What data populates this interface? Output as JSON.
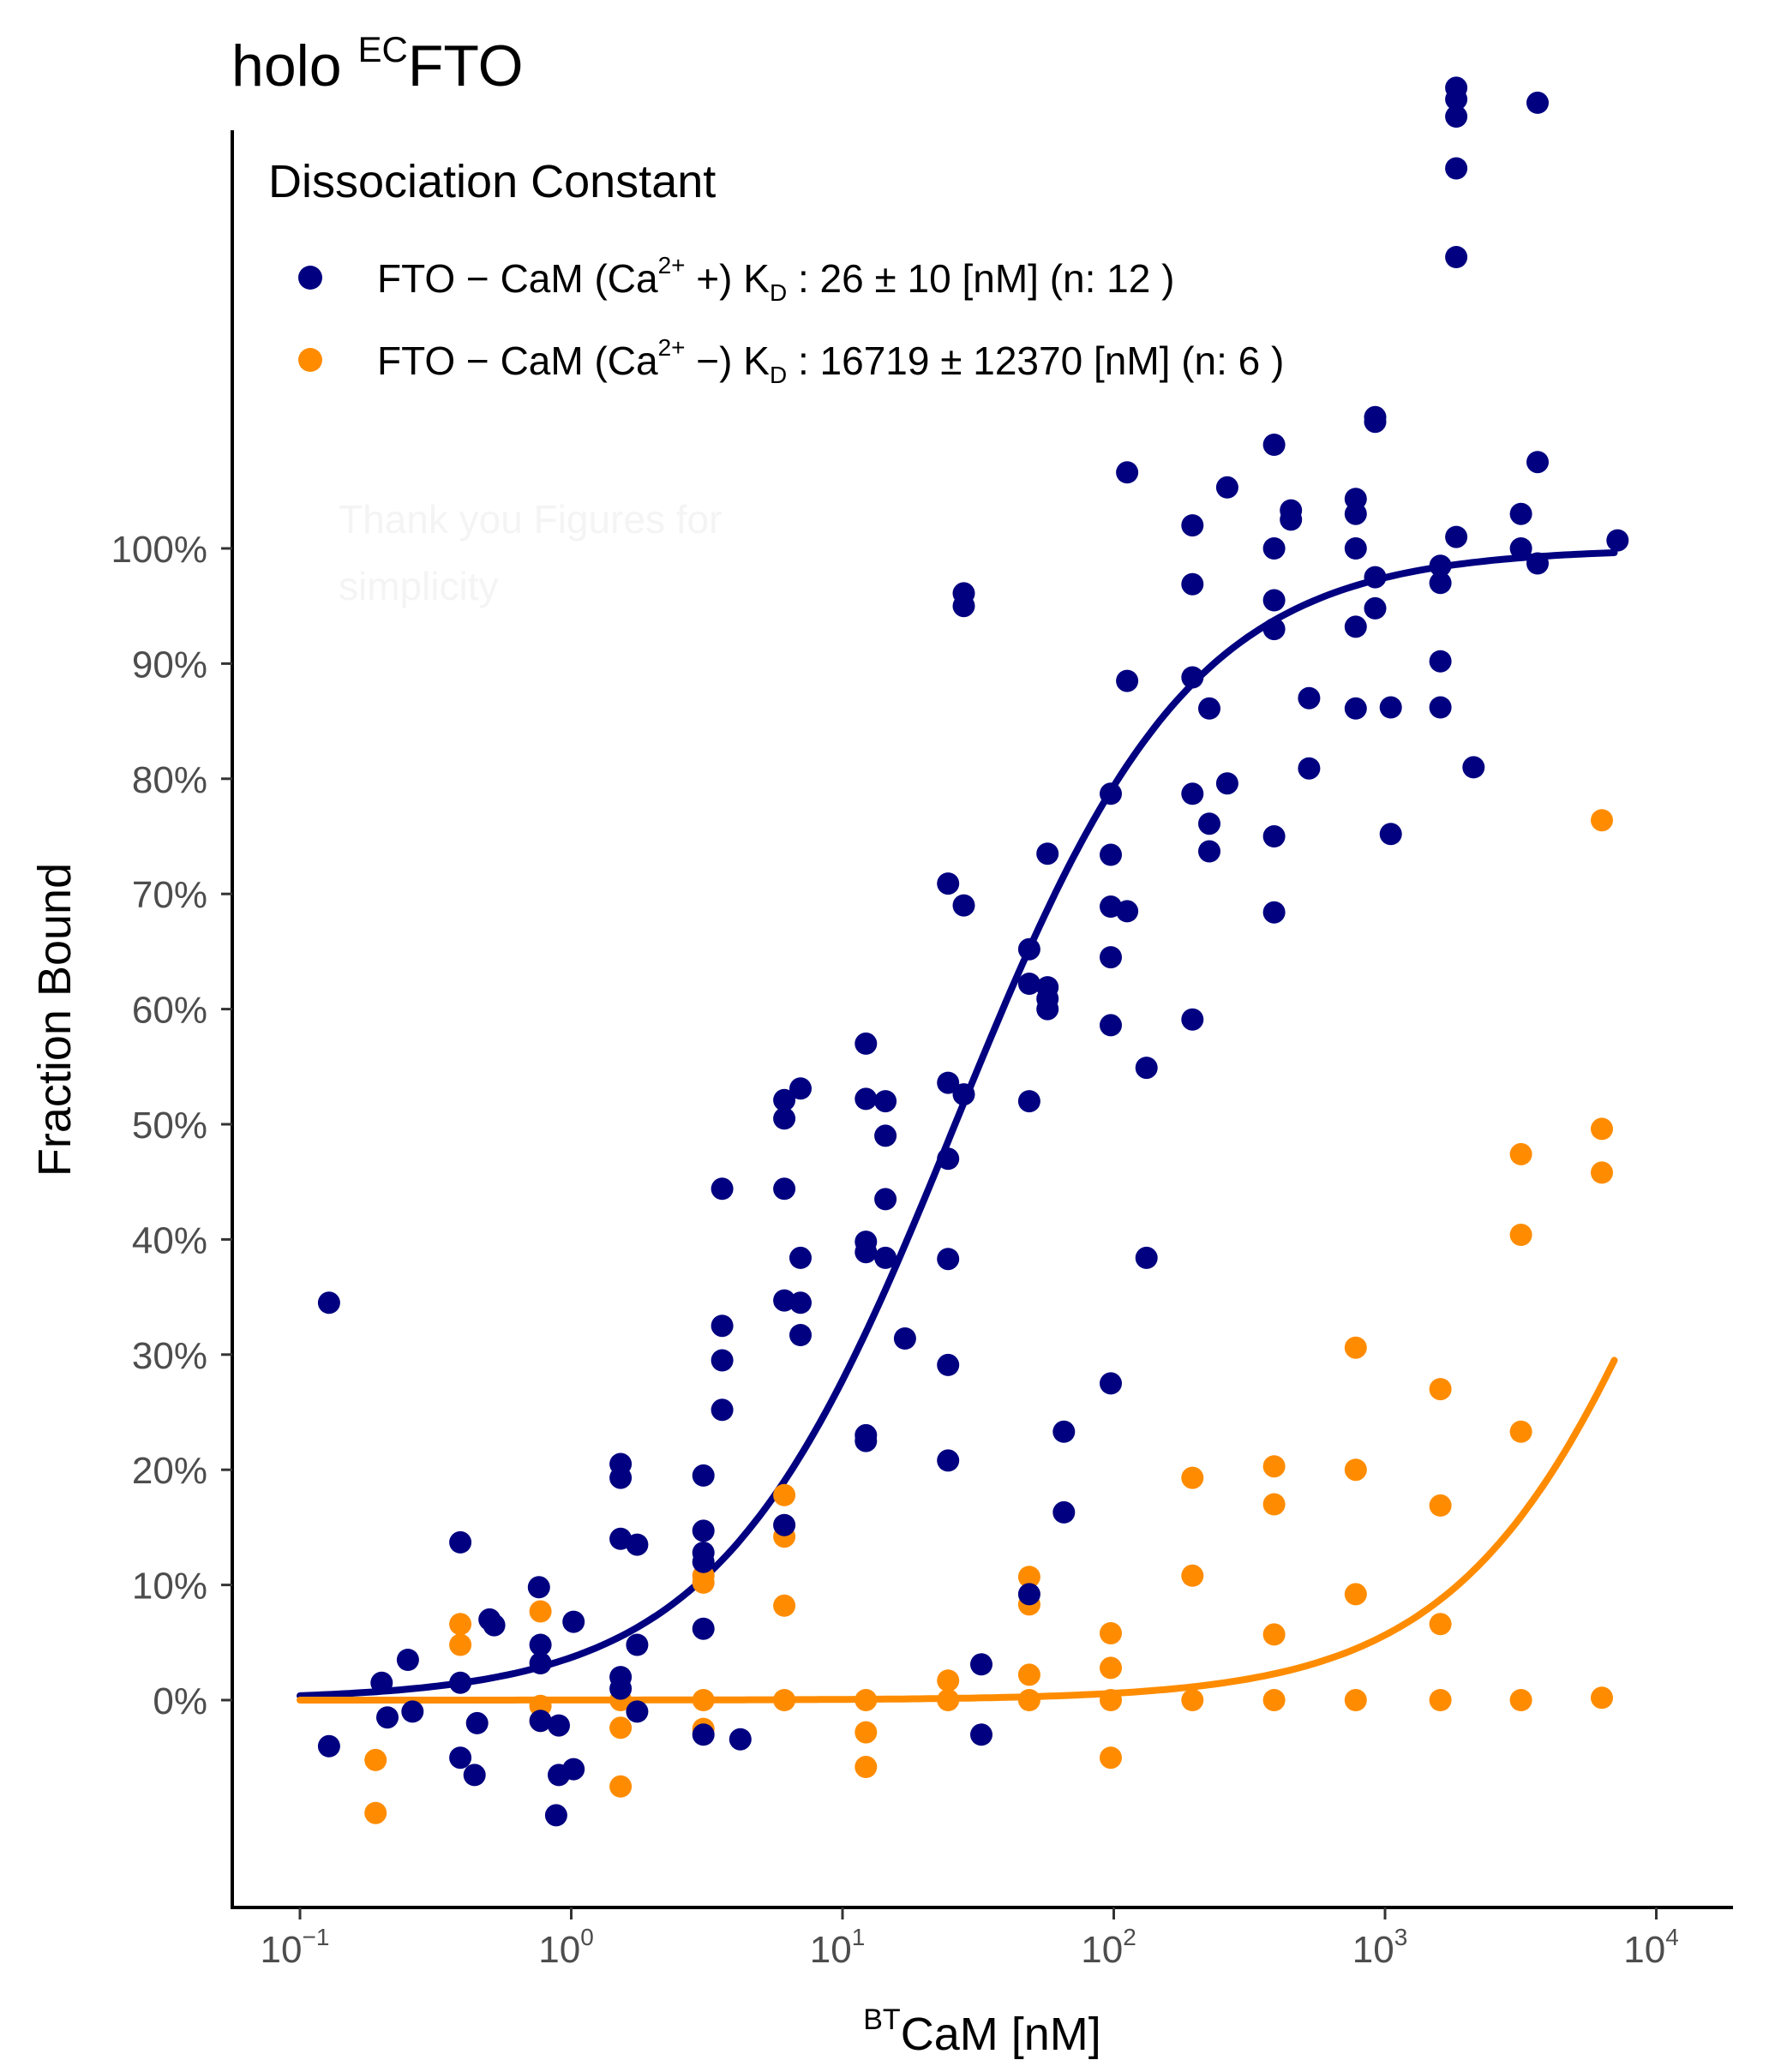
{
  "chart_data": {
    "type": "scatter",
    "title": {
      "prefix": "holo ",
      "superscript": "EC",
      "main": "FTO"
    },
    "xlabel": {
      "superscript": "BT",
      "main": "CaM [nM]"
    },
    "ylabel": "Fraction Bound",
    "x_scale": "log10",
    "xlim": [
      0.06,
      12000
    ],
    "ylim": [
      -0.16,
      1.38
    ],
    "x_ticks": [
      {
        "value": 0.1,
        "base": "10",
        "exp": "−1"
      },
      {
        "value": 1,
        "base": "10",
        "exp": "0"
      },
      {
        "value": 10,
        "base": "10",
        "exp": "1"
      },
      {
        "value": 100,
        "base": "10",
        "exp": "2"
      },
      {
        "value": 1000,
        "base": "10",
        "exp": "3"
      },
      {
        "value": 10000,
        "base": "10",
        "exp": "4"
      }
    ],
    "y_ticks": [
      {
        "value": 0.0,
        "label": "0%"
      },
      {
        "value": 0.1,
        "label": "10%"
      },
      {
        "value": 0.2,
        "label": "20%"
      },
      {
        "value": 0.3,
        "label": "30%"
      },
      {
        "value": 0.4,
        "label": "40%"
      },
      {
        "value": 0.5,
        "label": "50%"
      },
      {
        "value": 0.6,
        "label": "60%"
      },
      {
        "value": 0.7,
        "label": "70%"
      },
      {
        "value": 0.8,
        "label": "80%"
      },
      {
        "value": 0.9,
        "label": "90%"
      },
      {
        "value": 1.0,
        "label": "100%"
      }
    ],
    "legend": {
      "title": "Dissociation Constant",
      "position": "top-left"
    },
    "ghost_text": [
      "Thank you Figures for",
      "simplicity"
    ],
    "series": [
      {
        "name": "FTO − CaM (Ca2+ +)",
        "color": "#000080",
        "legend_parts": {
          "a": "FTO − CaM (Ca",
          "sup": "2+",
          "b": " +)  K",
          "sub": "D",
          "c": " :  26 ± 10  [nM] (n:  12 )"
        },
        "kd": 26,
        "kd_err": 10,
        "n": 12,
        "fit": {
          "model": "hill",
          "kd": 26,
          "top": 1.0,
          "bottom": 0.0,
          "hill": 1,
          "x_range": [
            0.1,
            7000
          ]
        },
        "points": [
          [
            0.128,
            0.345
          ],
          [
            0.128,
            -0.04
          ],
          [
            0.2,
            0.015
          ],
          [
            0.21,
            -0.015
          ],
          [
            0.25,
            0.035
          ],
          [
            0.26,
            -0.01
          ],
          [
            0.39,
            0.137
          ],
          [
            0.39,
            0.015
          ],
          [
            0.39,
            -0.05
          ],
          [
            0.44,
            -0.065
          ],
          [
            0.45,
            -0.02
          ],
          [
            0.5,
            0.07
          ],
          [
            0.52,
            0.065
          ],
          [
            0.76,
            0.098
          ],
          [
            0.77,
            0.048
          ],
          [
            0.77,
            0.032
          ],
          [
            0.77,
            -0.018
          ],
          [
            0.88,
            -0.1
          ],
          [
            0.9,
            -0.065
          ],
          [
            0.9,
            -0.022
          ],
          [
            1.02,
            0.068
          ],
          [
            1.02,
            -0.06
          ],
          [
            1.52,
            0.205
          ],
          [
            1.52,
            0.193
          ],
          [
            1.52,
            0.14
          ],
          [
            1.52,
            0.02
          ],
          [
            1.52,
            0.01
          ],
          [
            1.75,
            0.135
          ],
          [
            1.75,
            0.048
          ],
          [
            1.75,
            -0.01
          ],
          [
            3.07,
            0.195
          ],
          [
            3.07,
            0.147
          ],
          [
            3.07,
            0.128
          ],
          [
            3.07,
            0.12
          ],
          [
            3.07,
            0.062
          ],
          [
            3.07,
            -0.03
          ],
          [
            3.6,
            0.444
          ],
          [
            3.6,
            0.325
          ],
          [
            3.6,
            0.295
          ],
          [
            3.6,
            0.252
          ],
          [
            4.2,
            -0.034
          ],
          [
            6.1,
            0.521
          ],
          [
            6.1,
            0.505
          ],
          [
            6.1,
            0.444
          ],
          [
            6.1,
            0.347
          ],
          [
            6.1,
            0.152
          ],
          [
            7.0,
            0.531
          ],
          [
            7.0,
            0.384
          ],
          [
            7.0,
            0.345
          ],
          [
            7.0,
            0.317
          ],
          [
            12.2,
            0.57
          ],
          [
            12.2,
            0.522
          ],
          [
            12.2,
            0.398
          ],
          [
            12.2,
            0.389
          ],
          [
            12.2,
            0.23
          ],
          [
            12.2,
            0.225
          ],
          [
            14.4,
            0.52
          ],
          [
            14.4,
            0.49
          ],
          [
            14.4,
            0.435
          ],
          [
            14.4,
            0.384
          ],
          [
            17.0,
            0.314
          ],
          [
            24.5,
            0.709
          ],
          [
            24.5,
            0.536
          ],
          [
            24.5,
            0.47
          ],
          [
            24.5,
            0.383
          ],
          [
            24.5,
            0.291
          ],
          [
            24.5,
            0.208
          ],
          [
            28.0,
            0.961
          ],
          [
            28.0,
            0.95
          ],
          [
            28.0,
            0.69
          ],
          [
            28.0,
            0.526
          ],
          [
            32.5,
            0.031
          ],
          [
            32.5,
            -0.03
          ],
          [
            48.8,
            0.652
          ],
          [
            48.8,
            0.622
          ],
          [
            48.8,
            0.52
          ],
          [
            48.8,
            0.092
          ],
          [
            57.0,
            0.735
          ],
          [
            57.0,
            0.619
          ],
          [
            57.0,
            0.609
          ],
          [
            57.0,
            0.6
          ],
          [
            65.5,
            0.233
          ],
          [
            65.5,
            0.163
          ],
          [
            97.5,
            0.787
          ],
          [
            97.5,
            0.734
          ],
          [
            97.5,
            0.689
          ],
          [
            97.5,
            0.645
          ],
          [
            97.5,
            0.586
          ],
          [
            97.5,
            0.275
          ],
          [
            112,
            1.066
          ],
          [
            112,
            0.885
          ],
          [
            112,
            0.685
          ],
          [
            132,
            0.549
          ],
          [
            132,
            0.384
          ],
          [
            195,
            1.02
          ],
          [
            195,
            0.969
          ],
          [
            195,
            0.888
          ],
          [
            195,
            0.787
          ],
          [
            195,
            0.591
          ],
          [
            225,
            0.861
          ],
          [
            225,
            0.761
          ],
          [
            225,
            0.737
          ],
          [
            262,
            1.053
          ],
          [
            262,
            0.796
          ],
          [
            390,
            1.09
          ],
          [
            390,
            1.0
          ],
          [
            390,
            0.955
          ],
          [
            390,
            0.93
          ],
          [
            390,
            0.75
          ],
          [
            390,
            0.684
          ],
          [
            450,
            1.033
          ],
          [
            450,
            1.025
          ],
          [
            525,
            0.87
          ],
          [
            525,
            0.809
          ],
          [
            780,
            1.043
          ],
          [
            780,
            1.03
          ],
          [
            780,
            1.0
          ],
          [
            780,
            0.932
          ],
          [
            780,
            0.861
          ],
          [
            920,
            1.114
          ],
          [
            920,
            1.11
          ],
          [
            920,
            0.975
          ],
          [
            920,
            0.948
          ],
          [
            1050,
            0.862
          ],
          [
            1050,
            0.752
          ],
          [
            1600,
            0.985
          ],
          [
            1600,
            0.97
          ],
          [
            1600,
            0.902
          ],
          [
            1600,
            0.862
          ],
          [
            1830,
            1.4
          ],
          [
            1830,
            1.375
          ],
          [
            1830,
            1.39
          ],
          [
            1830,
            1.33
          ],
          [
            1830,
            1.253
          ],
          [
            1830,
            1.01
          ],
          [
            2120,
            0.81
          ],
          [
            3170,
            1.03
          ],
          [
            3170,
            1.0
          ],
          [
            3650,
            1.387
          ],
          [
            3650,
            1.075
          ],
          [
            3650,
            0.987
          ],
          [
            7200,
            1.007
          ]
        ]
      },
      {
        "name": "FTO − CaM (Ca2+ −)",
        "color": "#FF8C00",
        "legend_parts": {
          "a": "FTO − CaM (Ca",
          "sup": "2+",
          "b": " −)  K",
          "sub": "D",
          "c": " :  16719 ± 12370  [nM] (n:  6 )"
        },
        "kd": 16719,
        "kd_err": 12370,
        "n": 6,
        "fit": {
          "model": "hill",
          "kd": 16719,
          "top": 1.0,
          "bottom": 0.0,
          "hill": 1,
          "x_range": [
            0.1,
            7000
          ]
        },
        "points": [
          [
            0.19,
            -0.052
          ],
          [
            0.19,
            -0.098
          ],
          [
            0.39,
            0.066
          ],
          [
            0.39,
            0.048
          ],
          [
            0.77,
            0.077
          ],
          [
            0.77,
            -0.005
          ],
          [
            0.77,
            -0.018
          ],
          [
            1.52,
            0.0
          ],
          [
            1.52,
            -0.024
          ],
          [
            1.52,
            -0.075
          ],
          [
            3.07,
            0.108
          ],
          [
            3.07,
            0.102
          ],
          [
            3.07,
            0.0
          ],
          [
            3.07,
            -0.025
          ],
          [
            6.1,
            0.178
          ],
          [
            6.1,
            0.142
          ],
          [
            6.1,
            0.082
          ],
          [
            6.1,
            0.0
          ],
          [
            12.2,
            0.0
          ],
          [
            12.2,
            -0.028
          ],
          [
            12.2,
            -0.058
          ],
          [
            24.5,
            0.017
          ],
          [
            24.5,
            0.0
          ],
          [
            48.8,
            0.107
          ],
          [
            48.8,
            0.083
          ],
          [
            48.8,
            0.022
          ],
          [
            48.8,
            0.0
          ],
          [
            97.5,
            0.058
          ],
          [
            97.5,
            0.028
          ],
          [
            97.5,
            0.0
          ],
          [
            97.5,
            -0.05
          ],
          [
            195,
            0.193
          ],
          [
            195,
            0.108
          ],
          [
            195,
            0.0
          ],
          [
            390,
            0.203
          ],
          [
            390,
            0.17
          ],
          [
            390,
            0.057
          ],
          [
            390,
            0.0
          ],
          [
            780,
            0.306
          ],
          [
            780,
            0.2
          ],
          [
            780,
            0.092
          ],
          [
            780,
            0.0
          ],
          [
            1600,
            0.27
          ],
          [
            1600,
            0.169
          ],
          [
            1600,
            0.066
          ],
          [
            1600,
            0.0
          ],
          [
            3170,
            0.474
          ],
          [
            3170,
            0.404
          ],
          [
            3170,
            0.233
          ],
          [
            3170,
            0.0
          ],
          [
            6300,
            0.764
          ],
          [
            6300,
            0.496
          ],
          [
            6300,
            0.458
          ],
          [
            6300,
            0.002
          ]
        ]
      }
    ]
  }
}
